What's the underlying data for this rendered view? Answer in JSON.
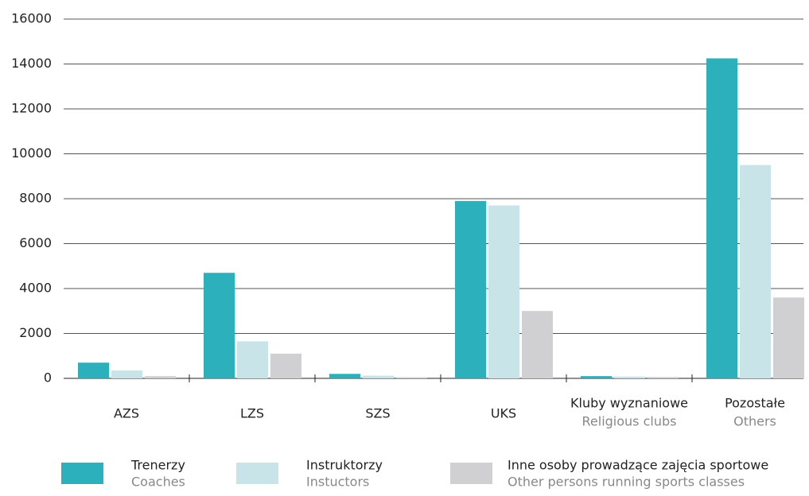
{
  "chart_data": {
    "type": "bar",
    "categories": [
      "AZS",
      "LZS",
      "SZS",
      "UKS",
      "Kluby wyznaniowe",
      "Pozostałe"
    ],
    "category_translations": [
      null,
      null,
      null,
      null,
      "Religious clubs",
      "Others"
    ],
    "series": [
      {
        "name": "Trenerzy",
        "name_translation": "Coaches",
        "color": "#2cb1bc",
        "values": [
          700,
          4700,
          200,
          7900,
          100,
          14250
        ]
      },
      {
        "name": "Instruktorzy",
        "name_translation": "Instuctors",
        "color": "#c9e4e8",
        "values": [
          350,
          1650,
          120,
          7700,
          80,
          9500
        ]
      },
      {
        "name": "Inne osoby prowadzące zajęcia sportowe",
        "name_translation": "Other persons running sports classes",
        "color": "#d0d0d2",
        "values": [
          100,
          1100,
          50,
          3000,
          60,
          3600
        ]
      }
    ],
    "ylim": [
      0,
      16000
    ],
    "yticks": [
      0,
      2000,
      4000,
      6000,
      8000,
      10000,
      12000,
      14000,
      16000
    ],
    "grid": true
  }
}
